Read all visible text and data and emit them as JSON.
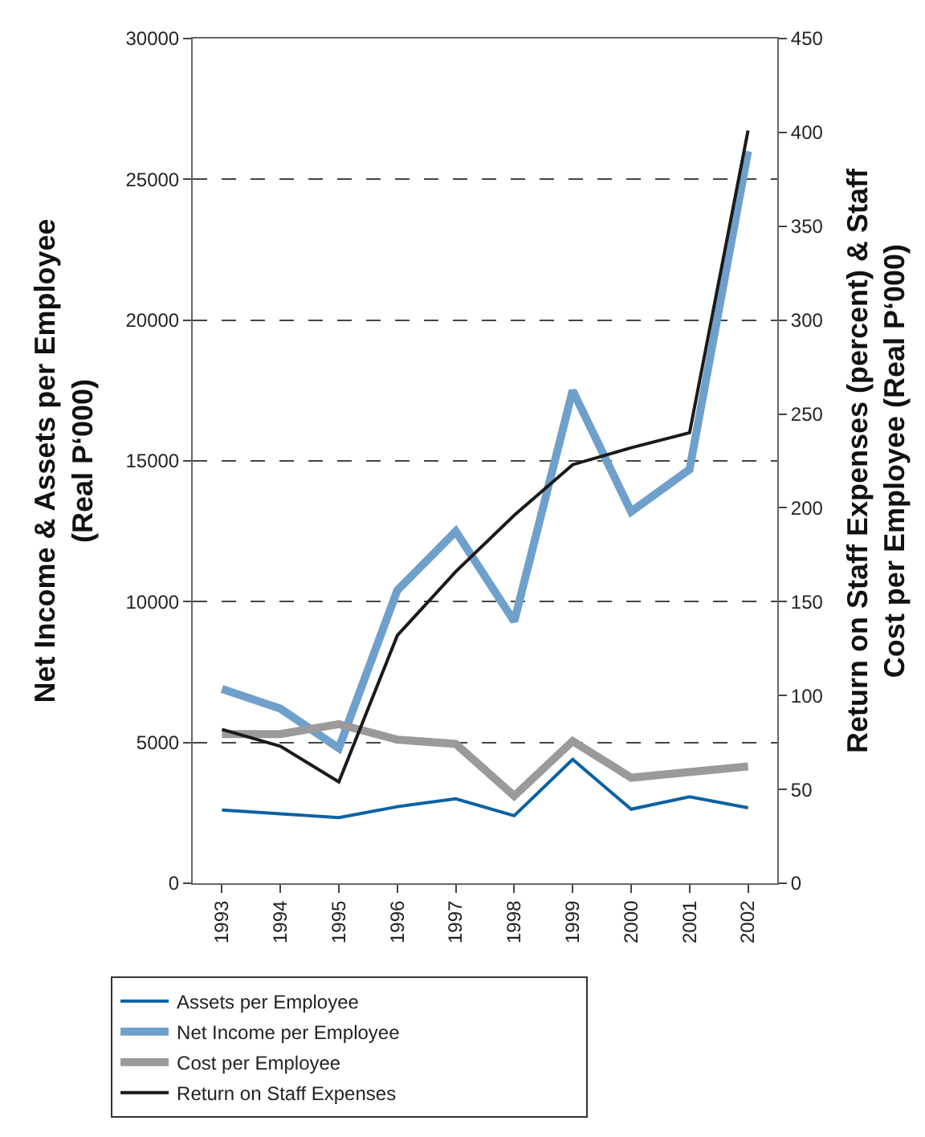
{
  "chart_data": {
    "type": "line",
    "categories": [
      "1993",
      "1994",
      "1995",
      "1996",
      "1997",
      "1998",
      "1999",
      "2000",
      "2001",
      "2002"
    ],
    "ylabel": "Net Income & Assets per Employee\n(Real P‘000)",
    "y2label": "Return on Staff Expenses (percent) & Staff\nCost per Employee (Real P‘000)",
    "series": [
      {
        "name": "Assets per Employee",
        "color": "#0a62a4",
        "values": [
          2600,
          2470,
          2330,
          2720,
          3000,
          2400,
          4400,
          2630,
          3070,
          2680
        ]
      },
      {
        "name": "Net Income per Employee",
        "color": "#6fa0cc",
        "values": [
          6900,
          6200,
          4800,
          10400,
          12500,
          9300,
          17500,
          13200,
          14700,
          26000
        ]
      },
      {
        "name": "Cost per Employee",
        "color": "#9a9a9c",
        "values": [
          5300,
          5300,
          5650,
          5100,
          4950,
          3100,
          5050,
          3750,
          3950,
          4150
        ]
      },
      {
        "name": "Return on Staff Expenses",
        "color": "#1a1a1a",
        "axis": "y2",
        "values": [
          82,
          73,
          54,
          132,
          166,
          196,
          223,
          232,
          240,
          401
        ]
      }
    ],
    "ylim": [
      0,
      30000
    ],
    "yticks": [
      0,
      5000,
      10000,
      15000,
      20000,
      25000,
      30000
    ],
    "y2lim": [
      0,
      450
    ],
    "y2ticks": [
      0,
      50,
      100,
      150,
      200,
      250,
      300,
      350,
      400,
      450
    ],
    "grid": "y",
    "line_style": "solid",
    "legend": "bottom"
  }
}
